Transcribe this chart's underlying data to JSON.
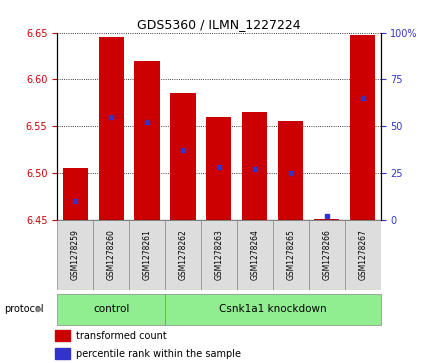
{
  "title": "GDS5360 / ILMN_1227224",
  "samples": [
    "GSM1278259",
    "GSM1278260",
    "GSM1278261",
    "GSM1278262",
    "GSM1278263",
    "GSM1278264",
    "GSM1278265",
    "GSM1278266",
    "GSM1278267"
  ],
  "bar_bottom": 6.45,
  "bar_tops": [
    6.505,
    6.645,
    6.62,
    6.585,
    6.56,
    6.565,
    6.555,
    6.451,
    6.648
  ],
  "percentile_values": [
    10,
    55,
    52,
    37,
    28,
    27,
    25,
    2,
    65
  ],
  "ylim_left": [
    6.45,
    6.65
  ],
  "ylim_right": [
    0,
    100
  ],
  "yticks_left": [
    6.45,
    6.5,
    6.55,
    6.6,
    6.65
  ],
  "yticks_right": [
    0,
    25,
    50,
    75,
    100
  ],
  "bar_color": "#CC0000",
  "blue_color": "#3333CC",
  "control_color": "#90EE90",
  "knockdown_color": "#90EE90",
  "xlabel_color": "#CC0000",
  "ylabel_right_color": "#3333CC",
  "bar_width": 0.7,
  "ctrl_count": 3,
  "kd_count": 6,
  "n_samples": 9
}
